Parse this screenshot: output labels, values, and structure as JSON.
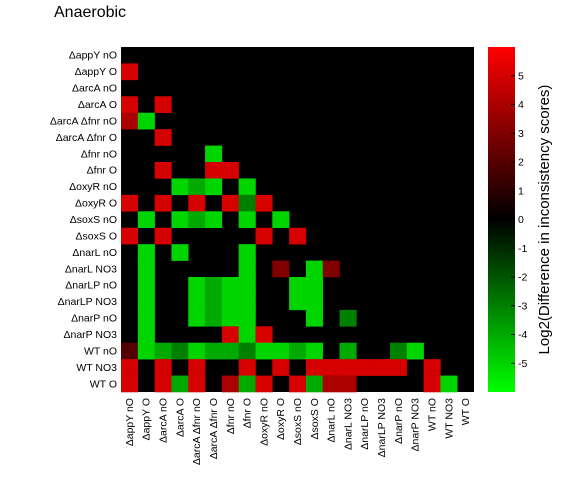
{
  "chart_data": {
    "type": "heatmap",
    "title": "Anaerobic",
    "labels": [
      "ΔappY nO",
      "ΔappY O",
      "ΔarcA nO",
      "ΔarcA O",
      "ΔarcA Δfnr nO",
      "ΔarcA Δfnr O",
      "Δfnr nO",
      "Δfnr O",
      "ΔoxyR nO",
      "ΔoxyR O",
      "ΔsoxS nO",
      "ΔsoxS O",
      "ΔnarL nO",
      "ΔnarL NO3",
      "ΔnarLP nO",
      "ΔnarLP NO3",
      "ΔnarP nO",
      "ΔnarP NO3",
      "WT nO",
      "WT NO3",
      "WT O"
    ],
    "lower_triangle": [
      [],
      [
        5
      ],
      [
        0,
        0
      ],
      [
        5,
        0,
        5
      ],
      [
        4,
        -5,
        0,
        0
      ],
      [
        0,
        0,
        5,
        0,
        0
      ],
      [
        0,
        0,
        0,
        0,
        0,
        -5
      ],
      [
        0,
        0,
        5,
        0,
        0,
        5,
        5
      ],
      [
        0,
        0,
        0,
        -5,
        -4,
        -5,
        0,
        -5
      ],
      [
        5,
        0,
        5,
        0,
        5,
        0,
        5,
        -3,
        5
      ],
      [
        0,
        -5,
        0,
        -5,
        -4,
        -5,
        0,
        -5,
        0,
        -5
      ],
      [
        5,
        0,
        5,
        0,
        0,
        0,
        0,
        0,
        5,
        0,
        5
      ],
      [
        0,
        -5,
        0,
        -5,
        0,
        0,
        0,
        -5,
        0,
        0,
        0,
        0
      ],
      [
        0,
        -5,
        0,
        0,
        0,
        0,
        0,
        -5,
        0,
        3,
        0,
        -5,
        3
      ],
      [
        0,
        -5,
        0,
        0,
        -5,
        -4,
        -5,
        -5,
        0,
        0,
        -5,
        -5,
        0,
        0
      ],
      [
        0,
        -5,
        0,
        0,
        -5,
        -4,
        -5,
        -5,
        0,
        0,
        -5,
        -5,
        0,
        0,
        0
      ],
      [
        0,
        -5,
        0,
        0,
        -5,
        -4,
        -5,
        -5,
        0,
        0,
        0,
        -5,
        0,
        -3,
        0,
        0
      ],
      [
        0,
        -5,
        0,
        0,
        0,
        0,
        5,
        -5,
        5,
        0,
        0,
        0,
        0,
        0,
        0,
        0,
        0
      ],
      [
        2,
        -5,
        -4,
        -3,
        -5,
        -4,
        -4,
        -3,
        -5,
        -5,
        -4,
        -5,
        0,
        -4,
        0,
        0,
        -3,
        -5
      ],
      [
        5,
        0,
        5,
        0,
        5,
        0,
        0,
        5,
        0,
        5,
        0,
        5,
        5,
        5,
        5,
        5,
        5,
        0,
        5
      ],
      [
        5,
        0,
        5,
        -4,
        5,
        0,
        4,
        -4,
        5,
        0,
        5,
        -4,
        4,
        4,
        0,
        0,
        0,
        0,
        5,
        -5
      ]
    ],
    "colorbar": {
      "label": "Log2(Difference in inconsistency scores)",
      "min": -6,
      "max": 6,
      "ticks": [
        5,
        4,
        3,
        2,
        1,
        0,
        -1,
        -2,
        -3,
        -4,
        -5
      ],
      "colors": {
        "low": "#00ff00",
        "mid": "#000000",
        "high": "#ff0000"
      }
    }
  }
}
